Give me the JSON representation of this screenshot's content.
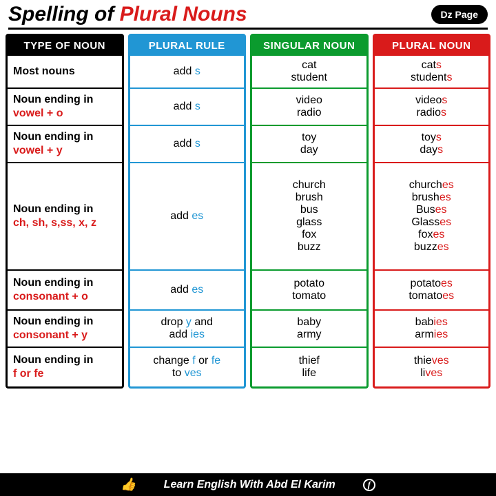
{
  "header": {
    "title_a": "Spelling of ",
    "title_b": "Plural Nouns",
    "badge": "Dz Page"
  },
  "cols": {
    "type": "TYPE OF NOUN",
    "rule": "PLURAL RULE",
    "sing": "SINGULAR NOUN",
    "plur": "PLURAL NOUN"
  },
  "heights": [
    48,
    54,
    54,
    156,
    58,
    54,
    56
  ],
  "rows": [
    {
      "type_a": "Most nouns",
      "type_b": "",
      "rule": [
        [
          "add ",
          "s"
        ]
      ],
      "sing": [
        "cat",
        "student"
      ],
      "plur": [
        [
          "cat",
          "s"
        ],
        [
          "student",
          "s"
        ]
      ]
    },
    {
      "type_a": "Noun ending in",
      "type_b": "vowel + o",
      "rule": [
        [
          "add ",
          "s"
        ]
      ],
      "sing": [
        "video",
        "radio"
      ],
      "plur": [
        [
          "video",
          "s"
        ],
        [
          "radio",
          "s"
        ]
      ]
    },
    {
      "type_a": "Noun ending in",
      "type_b": "vowel + y",
      "rule": [
        [
          "add ",
          "s"
        ]
      ],
      "sing": [
        "toy",
        "day"
      ],
      "plur": [
        [
          "toy",
          "s"
        ],
        [
          "day",
          "s"
        ]
      ]
    },
    {
      "type_a": "Noun ending in",
      "type_b": "ch, sh, s,ss, x, z",
      "rule": [
        [
          "add ",
          "es"
        ]
      ],
      "sing": [
        "church",
        "brush",
        "bus",
        "glass",
        "fox",
        "buzz"
      ],
      "plur": [
        [
          "church",
          "es"
        ],
        [
          "brush",
          "es"
        ],
        [
          "Bus",
          "es"
        ],
        [
          "Glass",
          "es"
        ],
        [
          "fox",
          "es"
        ],
        [
          "buzz",
          "es"
        ]
      ]
    },
    {
      "type_a": "Noun ending in",
      "type_b": "consonant + o",
      "rule": [
        [
          "add ",
          "es"
        ]
      ],
      "sing": [
        "potato",
        "tomato"
      ],
      "plur": [
        [
          "potato",
          "es"
        ],
        [
          "tomato",
          "es"
        ]
      ]
    },
    {
      "type_a": "Noun ending in",
      "type_b": "consonant + y",
      "rule": [
        [
          "drop ",
          "y",
          " and"
        ],
        [
          "add ",
          "ies"
        ]
      ],
      "sing": [
        "baby",
        "army"
      ],
      "plur": [
        [
          "bab",
          "ies"
        ],
        [
          "arm",
          "ies"
        ]
      ]
    },
    {
      "type_a": "Noun ending in",
      "type_b": "f or fe",
      "rule": [
        [
          "change ",
          "f",
          " or ",
          "fe"
        ],
        [
          "to ",
          "ves"
        ]
      ],
      "sing": [
        "thief",
        "life"
      ],
      "plur": [
        [
          "thie",
          "ves"
        ],
        [
          "li",
          "ves"
        ]
      ]
    }
  ],
  "footer": "Learn English With Abd El Karim"
}
